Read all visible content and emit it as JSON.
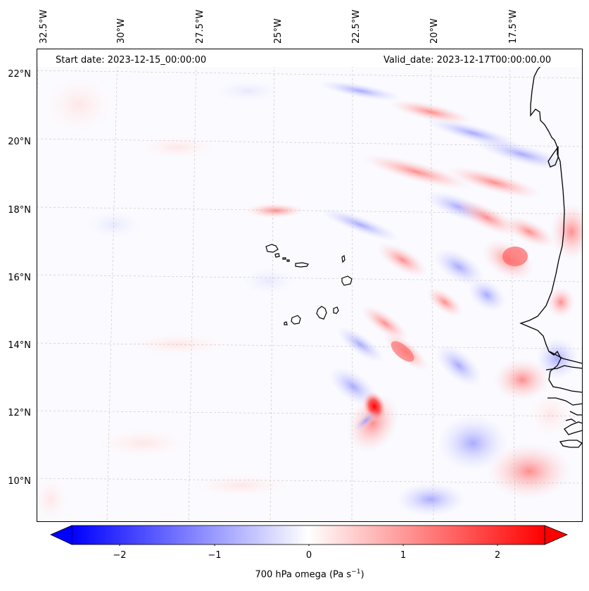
{
  "header": {
    "start_date": "Start date: 2023-12-15_00:00:00",
    "valid_date": "Valid_date: 2023-12-17T00:00:00.00"
  },
  "lon_labels": [
    "32.5°W",
    "30°W",
    "27.5°W",
    "25°W",
    "22.5°W",
    "20°W",
    "17.5°W"
  ],
  "lat_labels": [
    "22°N",
    "20°N",
    "18°N",
    "16°N",
    "14°N",
    "12°N",
    "10°N"
  ],
  "colorbar": {
    "ticks": [
      "−2",
      "−1",
      "0",
      "1",
      "2"
    ],
    "label_main": "700 hPa omega (Pa s",
    "label_sup": "−1",
    "label_end": ")",
    "min": -2.6,
    "max": 2.6,
    "colors": {
      "neg": "#0000ff",
      "mid": "#ffffff",
      "pos": "#ff0000"
    }
  }
}
